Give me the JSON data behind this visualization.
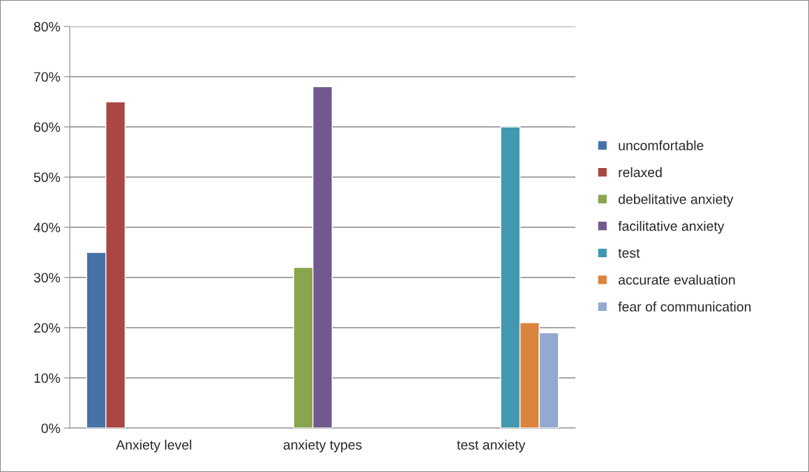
{
  "chart_data": {
    "type": "bar",
    "categories": [
      "Anxiety level",
      "anxiety types",
      "test anxiety"
    ],
    "series": [
      {
        "name": "uncomfortable",
        "color": "#4572a7",
        "values": [
          35,
          null,
          null
        ]
      },
      {
        "name": "relaxed",
        "color": "#aa4643",
        "values": [
          65,
          null,
          null
        ]
      },
      {
        "name": "debelitative anxiety",
        "color": "#89a54e",
        "values": [
          null,
          32,
          null
        ]
      },
      {
        "name": "facilitative anxiety",
        "color": "#71588f",
        "values": [
          null,
          68,
          null
        ]
      },
      {
        "name": "test",
        "color": "#4198af",
        "values": [
          null,
          null,
          60
        ]
      },
      {
        "name": "accurate evaluation",
        "color": "#db843d",
        "values": [
          null,
          null,
          21
        ]
      },
      {
        "name": "fear of communication",
        "color": "#93a9cf",
        "values": [
          null,
          null,
          19
        ]
      }
    ],
    "ylim": [
      0,
      80
    ],
    "yticks": [
      {
        "value": 0,
        "label": "0%"
      },
      {
        "value": 10,
        "label": "10%"
      },
      {
        "value": 20,
        "label": "20%"
      },
      {
        "value": 30,
        "label": "30%"
      },
      {
        "value": 40,
        "label": "40%"
      },
      {
        "value": 50,
        "label": "50%"
      },
      {
        "value": 60,
        "label": "60%"
      },
      {
        "value": 70,
        "label": "70%"
      },
      {
        "value": 80,
        "label": "80%"
      }
    ],
    "grid": "y",
    "legend": "right"
  }
}
